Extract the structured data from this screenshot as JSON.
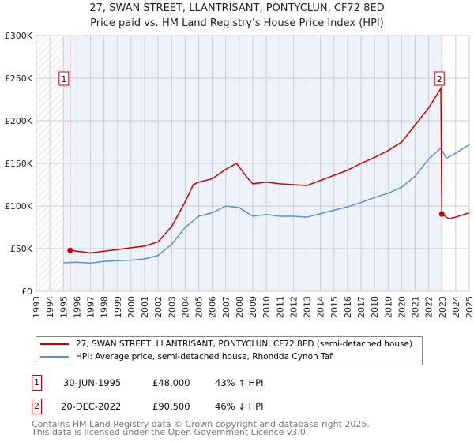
{
  "title_line1": "27, SWAN STREET, LLANTRISANT, PONTYCLUN, CF72 8ED",
  "title_line2": "Price paid vs. HM Land Registry's House Price Index (HPI)",
  "colors": {
    "price": "#cc0000",
    "hpi": "#5b8fd4",
    "shade": "#eef3fb"
  },
  "chart_data": {
    "type": "line",
    "xlim": [
      1993,
      2025
    ],
    "ylim": [
      0,
      300000
    ],
    "x_ticks": [
      "1993",
      "1994",
      "1995",
      "1996",
      "1997",
      "1998",
      "1999",
      "2000",
      "2001",
      "2002",
      "2003",
      "2004",
      "2005",
      "2006",
      "2007",
      "2008",
      "2009",
      "2010",
      "2011",
      "2012",
      "2013",
      "2014",
      "2015",
      "2016",
      "2017",
      "2018",
      "2019",
      "2020",
      "2021",
      "2022",
      "2023",
      "2024",
      "2025"
    ],
    "y_ticks": [
      {
        "v": 0,
        "label": "£0"
      },
      {
        "v": 50000,
        "label": "£50K"
      },
      {
        "v": 100000,
        "label": "£100K"
      },
      {
        "v": 150000,
        "label": "£150K"
      },
      {
        "v": 200000,
        "label": "£200K"
      },
      {
        "v": 250000,
        "label": "£250K"
      },
      {
        "v": 300000,
        "label": "£300K"
      }
    ],
    "series": [
      {
        "name": "27, SWAN STREET, LLANTRISANT, PONTYCLUN, CF72 8ED (semi-detached house)",
        "x": [
          1995.5,
          1996,
          1997,
          1998,
          1999,
          2000,
          2001,
          2002,
          2003,
          2004,
          2004.6,
          2005,
          2006,
          2007,
          2007.8,
          2008.5,
          2009,
          2010,
          2011,
          2012,
          2013,
          2014,
          2015,
          2016,
          2017,
          2018,
          2019,
          2020,
          2021,
          2022,
          2022.9,
          2022.97,
          2023.5,
          2024,
          2025
        ],
        "y": [
          48000,
          47000,
          45000,
          47000,
          49000,
          51000,
          53000,
          58000,
          76000,
          105000,
          125000,
          128000,
          132000,
          143000,
          150000,
          135000,
          126000,
          128000,
          126000,
          125000,
          124000,
          130000,
          136000,
          142000,
          150000,
          157000,
          165000,
          175000,
          195000,
          215000,
          238000,
          90500,
          85000,
          87000,
          92000
        ]
      },
      {
        "name": "HPI: Average price, semi-detached house, Rhondda Cynon Taf",
        "x": [
          1995,
          1996,
          1997,
          1998,
          1999,
          2000,
          2001,
          2002,
          2003,
          2004,
          2005,
          2006,
          2007,
          2008,
          2009,
          2010,
          2011,
          2012,
          2013,
          2014,
          2015,
          2016,
          2017,
          2018,
          2019,
          2020,
          2021,
          2022,
          2022.9,
          2023.3,
          2024,
          2025
        ],
        "y": [
          33500,
          34000,
          33000,
          35000,
          36000,
          36500,
          38000,
          42000,
          55000,
          75000,
          88000,
          92000,
          100000,
          98000,
          88000,
          90000,
          88000,
          88000,
          87000,
          91000,
          95000,
          99000,
          104000,
          110000,
          115000,
          122000,
          135000,
          155000,
          168000,
          156000,
          162000,
          172000
        ]
      }
    ],
    "legend": [
      "27, SWAN STREET, LLANTRISANT, PONTYCLUN, CF72 8ED (semi-detached house)",
      "HPI: Average price, semi-detached house, Rhondda Cynon Taf"
    ],
    "legend_placement": "bottom",
    "annotations": [
      {
        "label": "1",
        "x": 1995.5,
        "y": 48000
      },
      {
        "label": "2",
        "x": 2022.97,
        "y": 90500
      }
    ]
  },
  "transactions": [
    {
      "num": "1",
      "date": "30-JUN-1995",
      "price": "£48,000",
      "hpi": "43% ↑ HPI"
    },
    {
      "num": "2",
      "date": "20-DEC-2022",
      "price": "£90,500",
      "hpi": "46% ↓ HPI"
    }
  ],
  "footer_line1": "Contains HM Land Registry data © Crown copyright and database right 2025.",
  "footer_line2": "This data is licensed under the Open Government Licence v3.0."
}
